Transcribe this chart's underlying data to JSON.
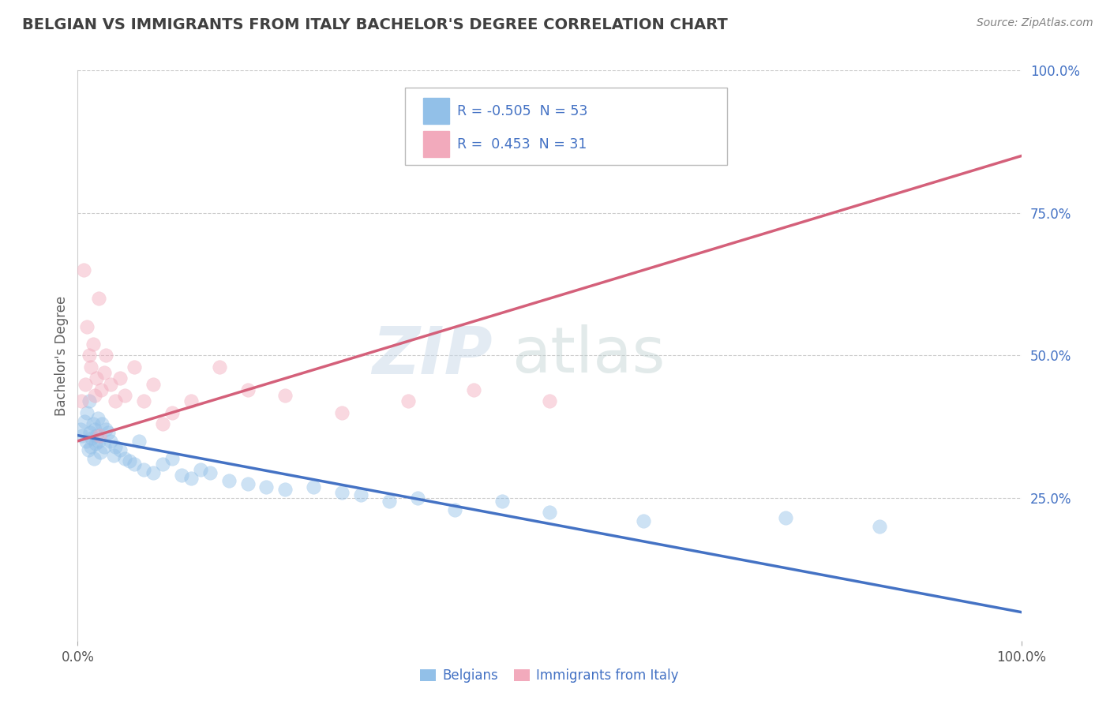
{
  "title": "BELGIAN VS IMMIGRANTS FROM ITALY BACHELOR'S DEGREE CORRELATION CHART",
  "source": "Source: ZipAtlas.com",
  "ylabel": "Bachelor's Degree",
  "legend_labels": [
    "Belgians",
    "Immigrants from Italy"
  ],
  "blue_color": "#92C0E8",
  "pink_color": "#F2AABC",
  "blue_line_color": "#4472C4",
  "pink_line_color": "#D4607A",
  "tick_color": "#4472C4",
  "title_color": "#404040",
  "source_color": "#808080",
  "R_blue": -0.505,
  "N_blue": 53,
  "R_pink": 0.453,
  "N_pink": 31,
  "blue_scatter_x": [
    0.3,
    0.5,
    0.7,
    0.9,
    1.0,
    1.1,
    1.2,
    1.3,
    1.4,
    1.5,
    1.6,
    1.7,
    1.8,
    1.9,
    2.0,
    2.1,
    2.2,
    2.4,
    2.6,
    2.8,
    3.0,
    3.2,
    3.5,
    3.8,
    4.0,
    4.5,
    5.0,
    5.5,
    6.0,
    6.5,
    7.0,
    8.0,
    9.0,
    10.0,
    11.0,
    12.0,
    13.0,
    14.0,
    16.0,
    18.0,
    20.0,
    22.0,
    25.0,
    28.0,
    30.0,
    33.0,
    36.0,
    40.0,
    45.0,
    50.0,
    60.0,
    75.0,
    85.0
  ],
  "blue_scatter_y": [
    37.0,
    36.0,
    38.5,
    35.0,
    40.0,
    33.5,
    42.0,
    36.5,
    34.0,
    35.5,
    38.0,
    32.0,
    37.0,
    34.5,
    36.0,
    39.0,
    35.0,
    33.0,
    38.0,
    34.0,
    37.0,
    36.5,
    35.0,
    32.5,
    34.0,
    33.5,
    32.0,
    31.5,
    31.0,
    35.0,
    30.0,
    29.5,
    31.0,
    32.0,
    29.0,
    28.5,
    30.0,
    29.5,
    28.0,
    27.5,
    27.0,
    26.5,
    27.0,
    26.0,
    25.5,
    24.5,
    25.0,
    23.0,
    24.5,
    22.5,
    21.0,
    21.5,
    20.0
  ],
  "pink_scatter_x": [
    0.4,
    0.6,
    0.8,
    1.0,
    1.2,
    1.4,
    1.6,
    1.8,
    2.0,
    2.2,
    2.5,
    2.8,
    3.0,
    3.5,
    4.0,
    4.5,
    5.0,
    6.0,
    7.0,
    8.0,
    9.0,
    10.0,
    12.0,
    15.0,
    18.0,
    22.0,
    28.0,
    35.0,
    42.0,
    50.0,
    2.3
  ],
  "pink_scatter_y": [
    42.0,
    65.0,
    45.0,
    55.0,
    50.0,
    48.0,
    52.0,
    43.0,
    46.0,
    60.0,
    44.0,
    47.0,
    50.0,
    45.0,
    42.0,
    46.0,
    43.0,
    48.0,
    42.0,
    45.0,
    38.0,
    40.0,
    42.0,
    48.0,
    44.0,
    43.0,
    40.0,
    42.0,
    44.0,
    42.0,
    36.0
  ],
  "blue_trend_x0": 0.0,
  "blue_trend_x1": 100.0,
  "blue_trend_y0": 36.0,
  "blue_trend_y1": 5.0,
  "pink_trend_x0": 0.0,
  "pink_trend_x1": 100.0,
  "pink_trend_y0": 35.0,
  "pink_trend_y1": 85.0,
  "xmin": 0.0,
  "xmax": 100.0,
  "ymin": 0.0,
  "ymax": 100.0,
  "yticks": [
    25,
    50,
    75,
    100
  ],
  "grid_color": "#CCCCCC",
  "background_color": "#FFFFFF",
  "scatter_size": 160,
  "scatter_alpha": 0.45
}
